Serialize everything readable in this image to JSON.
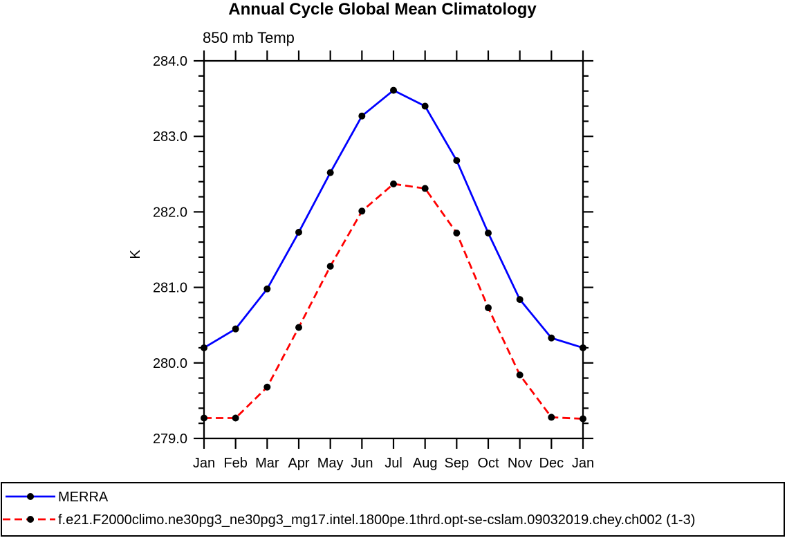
{
  "chart_data": {
    "type": "line",
    "title": "Annual Cycle Global Mean Climatology",
    "subtitle": "850 mb Temp",
    "ylabel": "K",
    "categories": [
      "Jan",
      "Feb",
      "Mar",
      "Apr",
      "May",
      "Jun",
      "Jul",
      "Aug",
      "Sep",
      "Oct",
      "Nov",
      "Dec",
      "Jan"
    ],
    "ylim": [
      279.0,
      284.0
    ],
    "ytick_labels": [
      "279.0",
      "280.0",
      "281.0",
      "282.0",
      "283.0",
      "284.0"
    ],
    "ytick_minor_step": 0.2,
    "grid": false,
    "legend_position": "bottom-full-width-box",
    "axis_color": "#000000",
    "marker_shape": "filled-circle",
    "series": [
      {
        "name": "MERRA",
        "color": "#0000ff",
        "line_style": "solid",
        "marker_color": "#000000",
        "values": [
          280.2,
          280.45,
          280.98,
          281.73,
          282.52,
          283.27,
          283.61,
          283.4,
          282.68,
          281.72,
          280.84,
          280.33,
          280.2
        ]
      },
      {
        "name": "f.e21.F2000climo.ne30pg3_ne30pg3_mg17.intel.1800pe.1thrd.opt-se-cslam.09032019.chey.ch002 (1-3)",
        "color": "#ff0000",
        "line_style": "dashed",
        "marker_color": "#000000",
        "values": [
          279.27,
          279.27,
          279.68,
          280.47,
          281.28,
          282.01,
          282.37,
          282.31,
          281.72,
          280.73,
          279.84,
          279.28,
          279.26
        ]
      }
    ]
  }
}
